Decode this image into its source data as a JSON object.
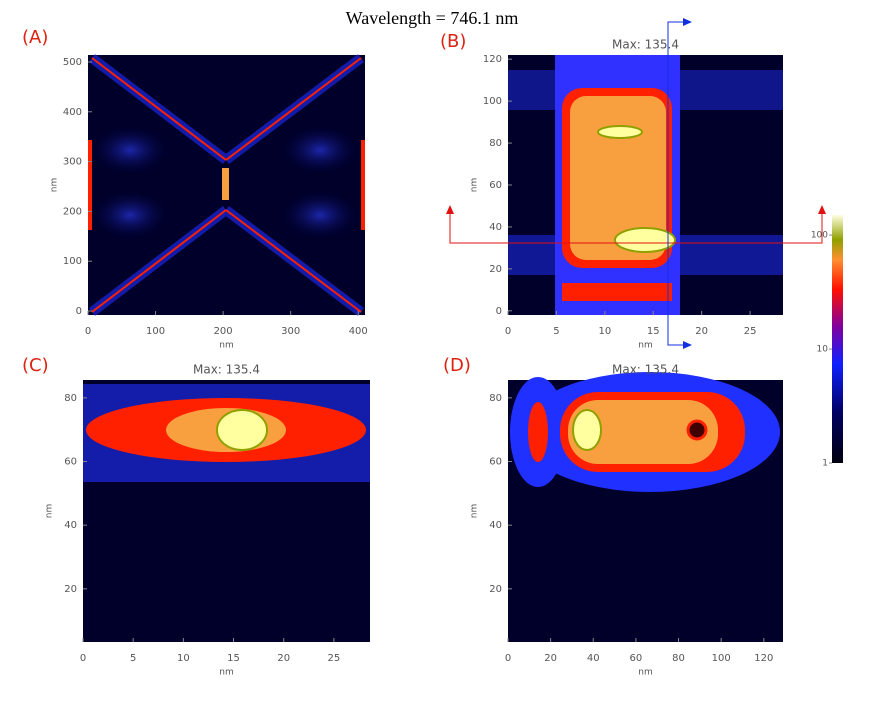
{
  "title": "Wavelength = 746.1 nm",
  "chart_data": [
    {
      "type": "heatmap",
      "label": "(A)",
      "xlabel": "nm",
      "ylabel": "nm",
      "xlim": [
        0,
        410
      ],
      "xticks": [
        0,
        100,
        200,
        300,
        400
      ],
      "ylim": [
        -8,
        514
      ],
      "yticks": [
        0,
        100,
        200,
        300,
        400,
        500
      ]
    },
    {
      "type": "heatmap",
      "label": "(B)",
      "title": "Max:  135.4",
      "xlabel": "nm",
      "ylabel": "nm",
      "xlim": [
        0,
        28.4
      ],
      "xticks": [
        0,
        5,
        10,
        15,
        20,
        25
      ],
      "ylim": [
        -2,
        122
      ],
      "yticks": [
        0,
        20,
        40,
        60,
        80,
        100,
        120
      ]
    },
    {
      "type": "heatmap",
      "label": "(C)",
      "title": "Max:  135.4",
      "xlabel": "nm",
      "ylabel": "nm",
      "xlim": [
        0,
        28.6
      ],
      "xticks": [
        0,
        5,
        10,
        15,
        20,
        25
      ],
      "ylim": [
        3.3,
        85.6
      ],
      "yticks": [
        20,
        40,
        60,
        80
      ]
    },
    {
      "type": "heatmap",
      "label": "(D)",
      "title": "Max:  135.4",
      "xlabel": "nm",
      "ylabel": "nm",
      "xlim": [
        0,
        129
      ],
      "xticks": [
        0,
        20,
        40,
        60,
        80,
        100,
        120
      ],
      "ylim": [
        3.3,
        85.6
      ],
      "yticks": [
        20,
        40,
        60,
        80
      ]
    },
    {
      "type": "colorbar",
      "log": true,
      "ylim": [
        1,
        150
      ],
      "yticks": [
        1,
        10,
        100
      ]
    }
  ]
}
